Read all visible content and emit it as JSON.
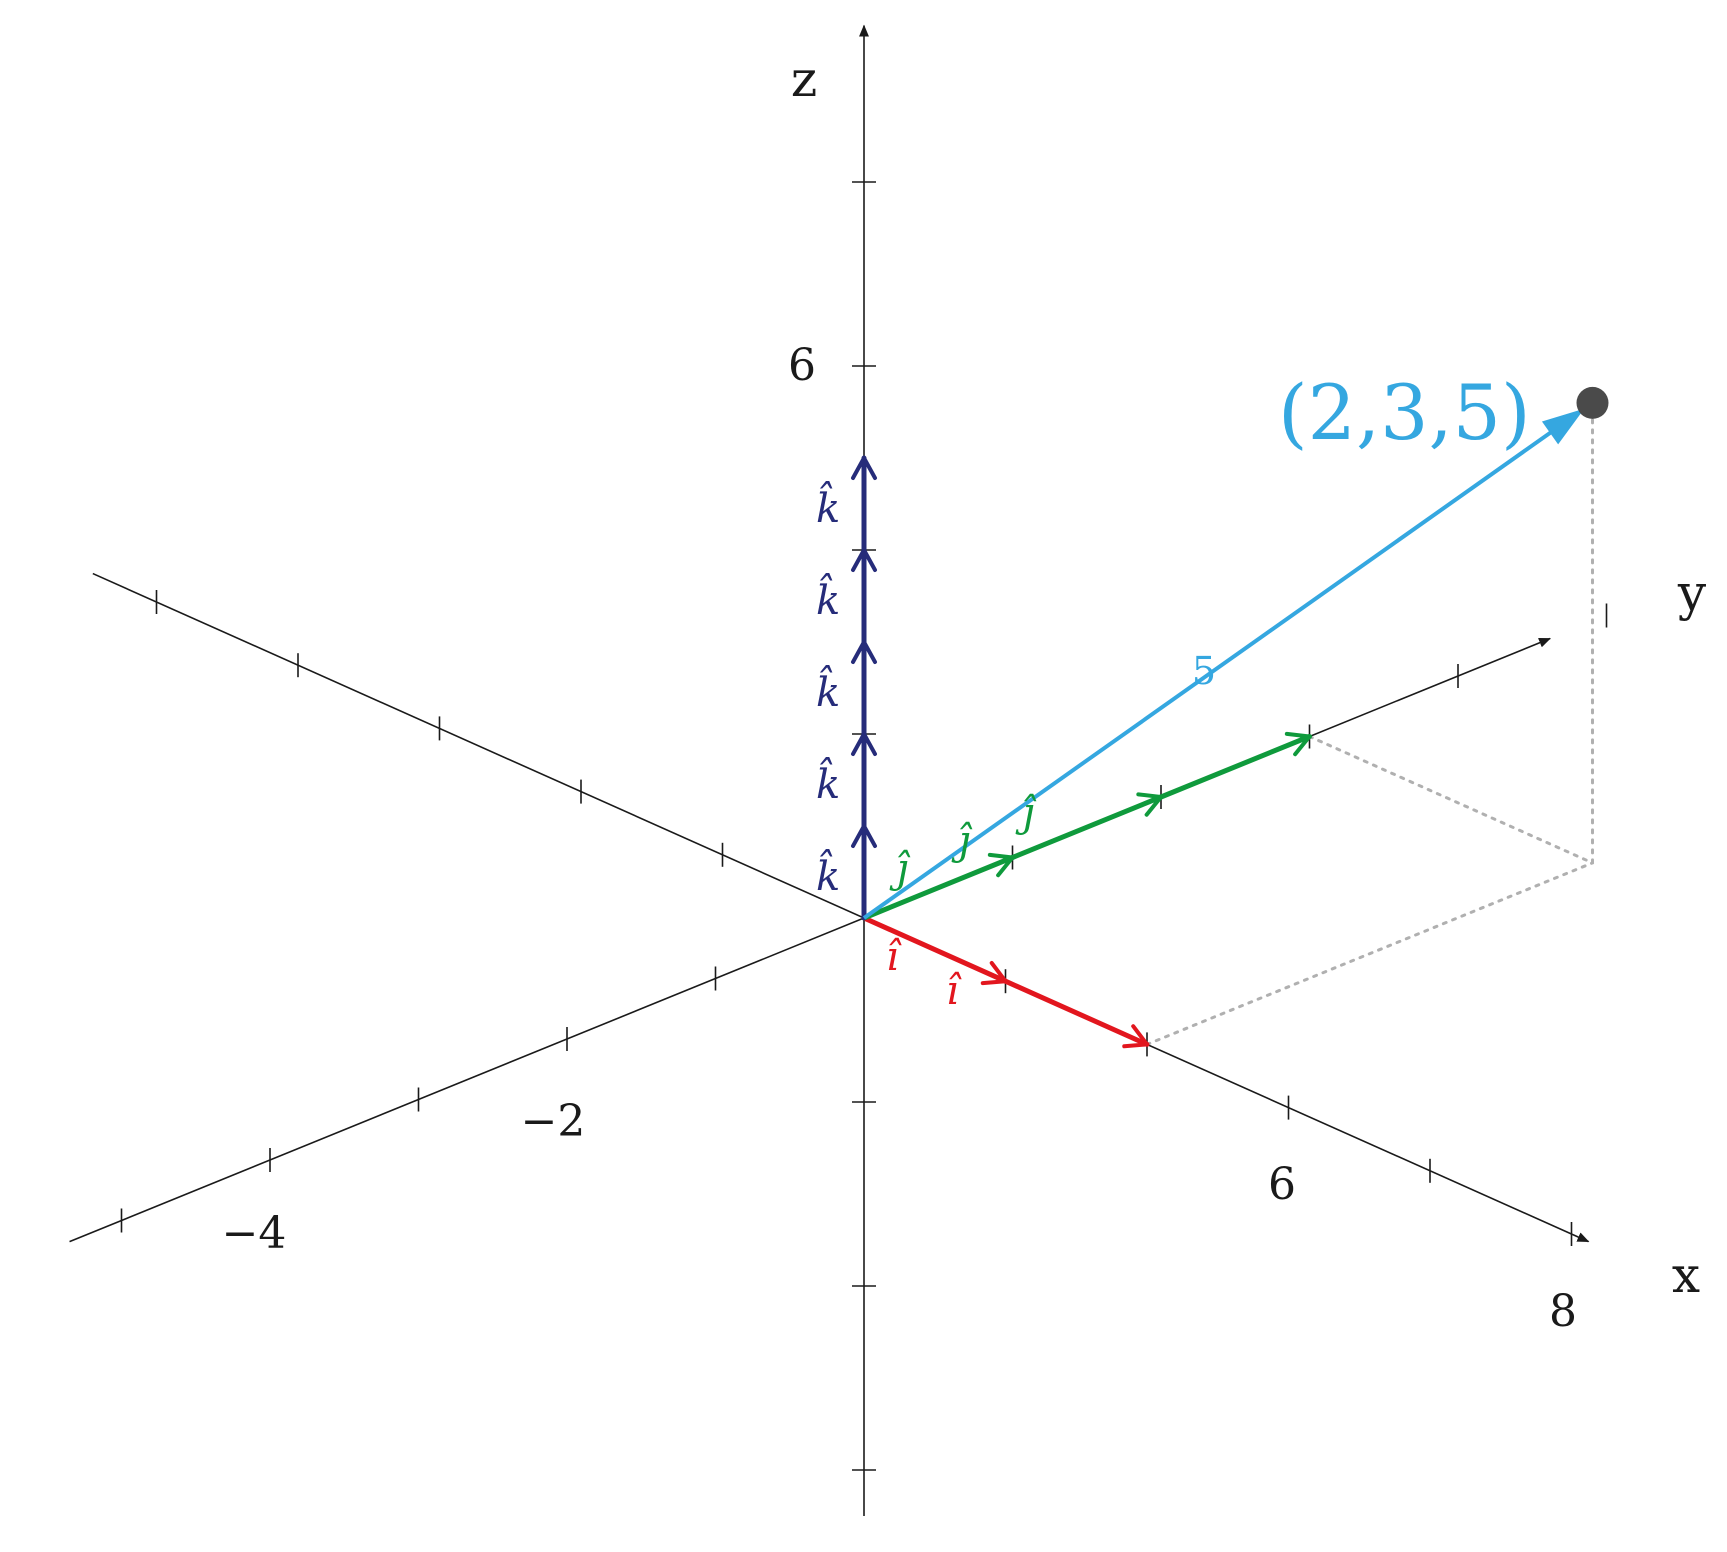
{
  "axes": {
    "x": {
      "name": "x",
      "tick_labels": [
        {
          "value": 6,
          "text": "6"
        },
        {
          "value": 8,
          "text": "8"
        }
      ]
    },
    "y": {
      "name": "y",
      "tick_labels": [
        {
          "value": -2,
          "text": "−2"
        },
        {
          "value": -4,
          "text": "−4"
        }
      ]
    },
    "z": {
      "name": "z",
      "tick_labels": [
        {
          "value": 6,
          "text": "6"
        }
      ]
    }
  },
  "unit_vectors": {
    "i": {
      "symbol": "î",
      "count": 2,
      "color": "#e2161e"
    },
    "j": {
      "symbol": "ĵ",
      "count": 3,
      "color": "#0f9a3c"
    },
    "k": {
      "symbol": "k̂",
      "count": 5,
      "color": "#262c7a"
    }
  },
  "point": {
    "label": "(2,3,5)",
    "coords": [
      2,
      3,
      5
    ],
    "color": "#35a7e0",
    "dot_color": "#4a4a4a"
  },
  "height_label": "5",
  "guide_color": "#b0b0b0",
  "axis_color": "#1a1a1a"
}
